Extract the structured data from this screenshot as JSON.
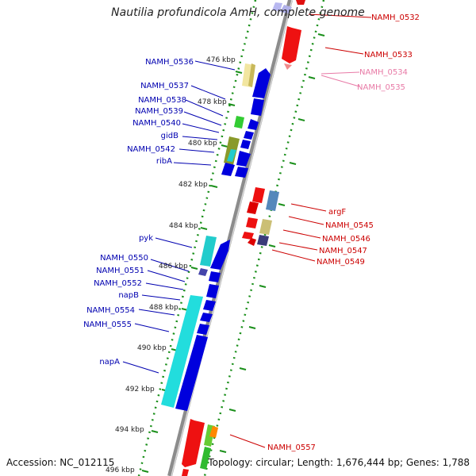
{
  "title": "Nautilia profundicola AmH, complete genome",
  "accession": "Accession: NC_012115",
  "topology": "Topology: circular; Length: 1,676,444 bp; Genes: 1,788",
  "colors": {
    "backbone": "#8c8c8c",
    "ticks_dotted": "#1a8f1a",
    "forward_label": "#0000b0",
    "reverse_label": "#cc0000",
    "reverse_label_faint": "#e87aa6"
  },
  "kbp_labels": [
    "476 kbp",
    "478 kbp",
    "480 kbp",
    "482 kbp",
    "484 kbp",
    "486 kbp",
    "488 kbp",
    "490 kbp",
    "492 kbp",
    "494 kbp",
    "496 kbp"
  ],
  "forward_genes": [
    "NAMH_0536",
    "NAMH_0537",
    "NAMH_0538",
    "NAMH_0539",
    "NAMH_0540",
    "gidB",
    "NAMH_0542",
    "ribA",
    "pyk",
    "NAMH_0550",
    "NAMH_0551",
    "NAMH_0552",
    "napB",
    "NAMH_0554",
    "NAMH_0555",
    "napA"
  ],
  "reverse_genes": [
    "NAMH_0532",
    "NAMH_0533",
    "NAMH_0534",
    "NAMH_0535",
    "argF",
    "NAMH_0545",
    "NAMH_0546",
    "NAMH_0547",
    "NAMH_0549",
    "NAMH_0557"
  ]
}
